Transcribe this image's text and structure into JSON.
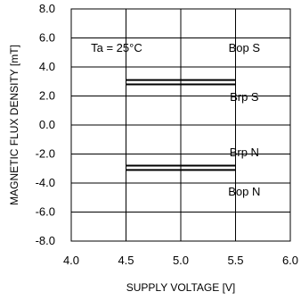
{
  "chart_data": {
    "type": "line",
    "title": "",
    "xlabel": "SUPPLY VOLTAGE [V]",
    "ylabel": "MAGNETIC FLUX DENSITY [mT]",
    "xlim": [
      4.0,
      6.0
    ],
    "ylim": [
      -8.0,
      8.0
    ],
    "x_ticks": [
      "4.0",
      "4.5",
      "5.0",
      "5.5",
      "6.0"
    ],
    "y_ticks": [
      "8.0",
      "6.0",
      "4.0",
      "2.0",
      "0.0",
      "-2.0",
      "-4.0",
      "-6.0",
      "-8.0"
    ],
    "grid": true,
    "annotation": "Ta = 25°C",
    "series": [
      {
        "name": "Bop S",
        "x": [
          4.5,
          5.5
        ],
        "y": [
          3.1,
          3.1
        ]
      },
      {
        "name": "Brp S",
        "x": [
          4.5,
          5.5
        ],
        "y": [
          2.8,
          2.8
        ]
      },
      {
        "name": "Brp N",
        "x": [
          4.5,
          5.5
        ],
        "y": [
          -2.8,
          -2.8
        ]
      },
      {
        "name": "Bop N",
        "x": [
          4.5,
          5.5
        ],
        "y": [
          -3.1,
          -3.1
        ]
      }
    ],
    "series_labels": [
      {
        "text": "Bop S",
        "x": 5.58,
        "y": 5.3
      },
      {
        "text": "Brp S",
        "x": 5.58,
        "y": 1.9
      },
      {
        "text": "Brp N",
        "x": 5.58,
        "y": -1.9
      },
      {
        "text": "Bop N",
        "x": 5.58,
        "y": -4.6
      }
    ]
  }
}
